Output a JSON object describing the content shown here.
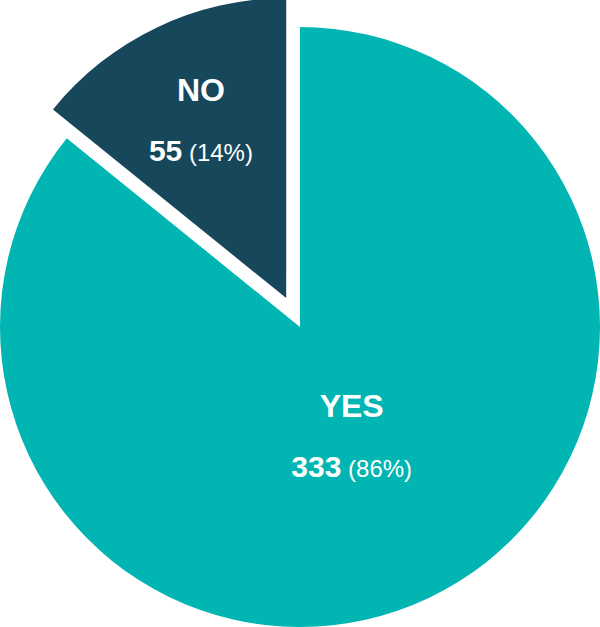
{
  "chart_data": {
    "type": "pie",
    "categories": [
      "YES",
      "NO"
    ],
    "values": [
      333,
      55
    ],
    "value_labels": [
      "333 (86%)",
      "55 (14%)"
    ],
    "colors": [
      "#00b5b2",
      "#17475a"
    ],
    "data_labels": true
  }
}
